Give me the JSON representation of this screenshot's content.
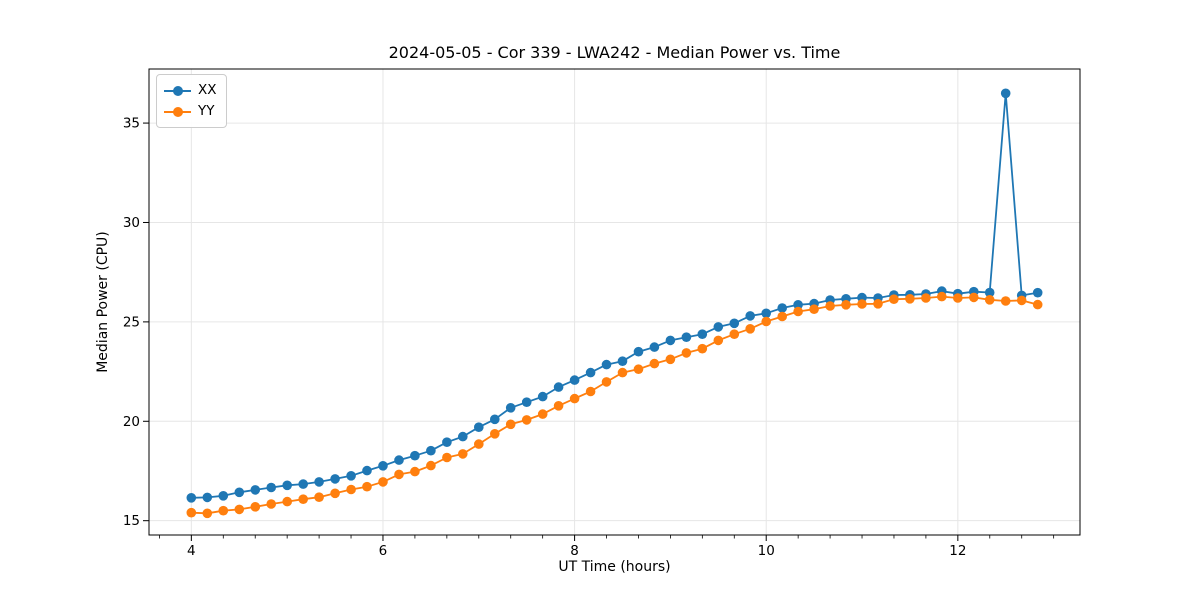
{
  "figure": {
    "background": "#ffffff",
    "text_color": "#000000",
    "grid_color": "#e6e6e6",
    "spine_color": "#000000"
  },
  "chart_data": {
    "type": "line",
    "title": "2024-05-05 - Cor 339 - LWA242 - Median Power vs. Time",
    "xlabel": "UT Time (hours)",
    "ylabel": "Median Power (CPU)",
    "xlim": [
      3.558,
      13.275
    ],
    "ylim": [
      14.28,
      37.72
    ],
    "x_major_ticks": [
      4,
      6,
      8,
      10,
      12
    ],
    "x_minor_tick_step": 0.3333,
    "y_major_ticks": [
      15,
      20,
      25,
      30,
      35
    ],
    "grid": "major-only",
    "legend": {
      "position": "upper-left",
      "entries": [
        "XX",
        "YY"
      ]
    },
    "marker": "circle",
    "x": [
      4.0,
      4.167,
      4.333,
      4.5,
      4.667,
      4.833,
      5.0,
      5.167,
      5.333,
      5.5,
      5.667,
      5.833,
      6.0,
      6.167,
      6.333,
      6.5,
      6.667,
      6.833,
      7.0,
      7.167,
      7.333,
      7.5,
      7.667,
      7.833,
      8.0,
      8.167,
      8.333,
      8.5,
      8.667,
      8.833,
      9.0,
      9.167,
      9.333,
      9.5,
      9.667,
      9.833,
      10.0,
      10.167,
      10.333,
      10.5,
      10.667,
      10.833,
      11.0,
      11.167,
      11.333,
      11.5,
      11.667,
      11.833,
      12.0,
      12.167,
      12.333,
      12.5,
      12.667,
      12.833
    ],
    "series": [
      {
        "name": "XX",
        "color": "#1f77b4",
        "values": [
          16.15,
          16.17,
          16.25,
          16.43,
          16.55,
          16.67,
          16.78,
          16.84,
          16.95,
          17.1,
          17.26,
          17.52,
          17.76,
          18.05,
          18.27,
          18.52,
          18.95,
          19.23,
          19.7,
          20.1,
          20.68,
          20.96,
          21.24,
          21.72,
          22.07,
          22.45,
          22.85,
          23.02,
          23.5,
          23.73,
          24.07,
          24.23,
          24.38,
          24.75,
          24.93,
          25.3,
          25.43,
          25.7,
          25.86,
          25.92,
          26.1,
          26.16,
          26.22,
          26.2,
          26.35,
          26.36,
          26.4,
          26.55,
          26.42,
          26.52,
          26.48,
          36.5,
          26.33,
          26.47
        ]
      },
      {
        "name": "YY",
        "color": "#ff7f0e",
        "values": [
          15.4,
          15.37,
          15.5,
          15.57,
          15.7,
          15.84,
          15.96,
          16.08,
          16.18,
          16.38,
          16.57,
          16.71,
          16.95,
          17.33,
          17.47,
          17.77,
          18.18,
          18.36,
          18.85,
          19.37,
          19.85,
          20.07,
          20.36,
          20.78,
          21.14,
          21.5,
          21.98,
          22.45,
          22.62,
          22.9,
          23.12,
          23.44,
          23.65,
          24.07,
          24.38,
          24.65,
          25.02,
          25.27,
          25.52,
          25.64,
          25.8,
          25.86,
          25.9,
          25.91,
          26.14,
          26.16,
          26.2,
          26.27,
          26.2,
          26.23,
          26.11,
          26.05,
          26.08,
          25.87
        ]
      }
    ]
  }
}
